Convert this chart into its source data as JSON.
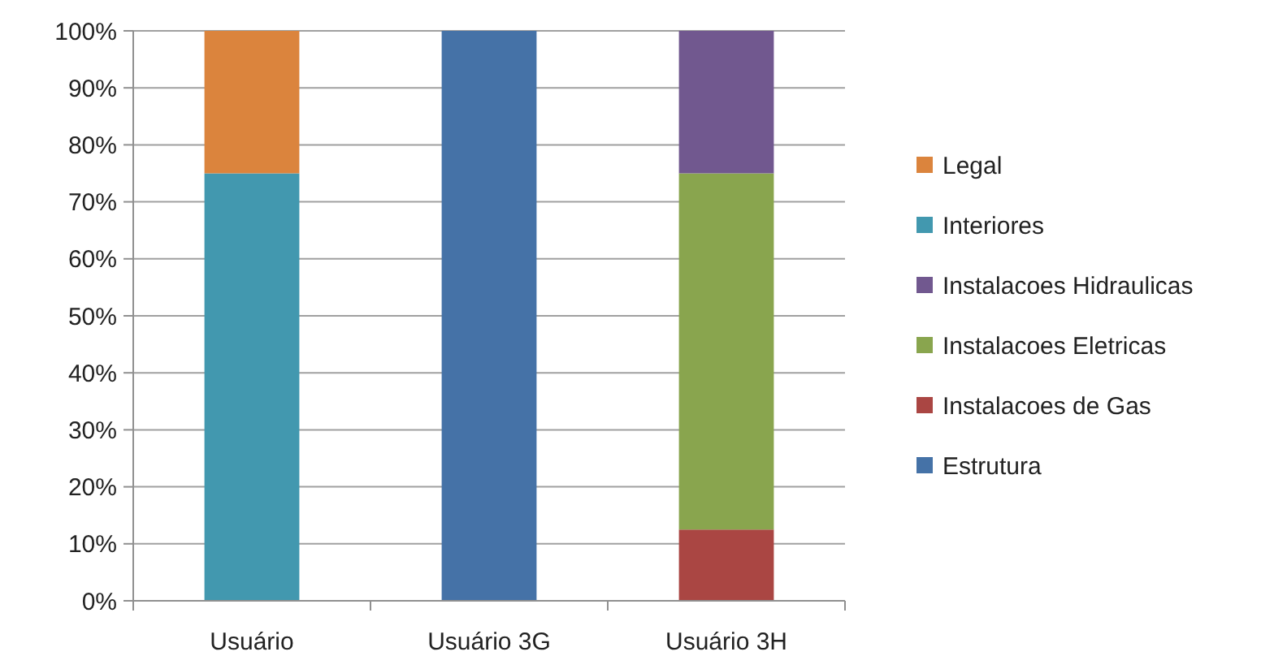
{
  "chart_data": {
    "type": "bar",
    "stacked": true,
    "categories": [
      "Usuário",
      "Usuário 3G",
      "Usuário 3H"
    ],
    "series": [
      {
        "name": "Estrutura",
        "color": "#4572a7",
        "values": [
          0,
          100,
          0
        ]
      },
      {
        "name": "Instalacoes de Gas",
        "color": "#aa4643",
        "values": [
          0,
          0,
          12.5
        ]
      },
      {
        "name": "Instalacoes Eletricas",
        "color": "#89a54e",
        "values": [
          0,
          0,
          62.5
        ]
      },
      {
        "name": "Instalacoes Hidraulicas",
        "color": "#71588f",
        "values": [
          0,
          0,
          25
        ]
      },
      {
        "name": "Interiores",
        "color": "#4298af",
        "values": [
          75,
          0,
          0
        ]
      },
      {
        "name": "Legal",
        "color": "#db843d",
        "values": [
          25,
          0,
          0
        ]
      }
    ],
    "ylim": [
      0,
      100
    ],
    "yticks": [
      {
        "value": 0,
        "label": "0%"
      },
      {
        "value": 10,
        "label": "10%"
      },
      {
        "value": 20,
        "label": "20%"
      },
      {
        "value": 30,
        "label": "30%"
      },
      {
        "value": 40,
        "label": "40%"
      },
      {
        "value": 50,
        "label": "50%"
      },
      {
        "value": 60,
        "label": "60%"
      },
      {
        "value": 70,
        "label": "70%"
      },
      {
        "value": 80,
        "label": "80%"
      },
      {
        "value": 90,
        "label": "90%"
      },
      {
        "value": 100,
        "label": "100%"
      }
    ],
    "grid": "y",
    "legend": "right"
  }
}
